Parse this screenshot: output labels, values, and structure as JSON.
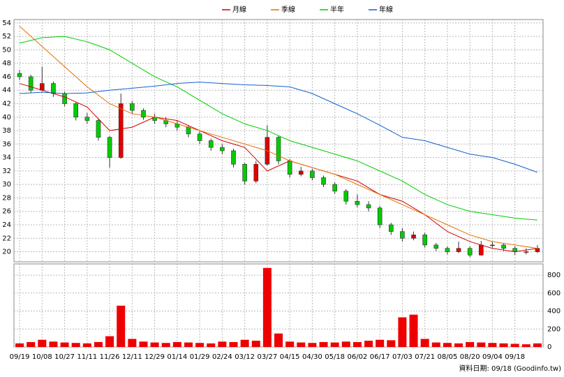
{
  "chart_data": [
    {
      "type": "candlestick",
      "x": [
        0,
        0.5,
        1,
        1.5,
        2,
        2.5,
        3,
        3.5,
        4,
        4.5,
        5,
        5.5,
        6,
        6.5,
        7,
        7.5,
        8,
        8.5,
        9,
        9.5,
        10,
        10.5,
        11,
        11.5,
        12,
        12.5,
        13,
        13.5,
        14,
        14.5,
        15,
        15.5,
        16,
        16.5,
        17,
        17.5,
        18,
        18.5,
        19,
        19.5,
        20,
        20.5,
        21,
        21.5,
        22,
        22.5,
        23
      ],
      "open": [
        46.5,
        46,
        44,
        45,
        43.5,
        42,
        40,
        39.5,
        37,
        34,
        42,
        41,
        40,
        39.5,
        39,
        38.5,
        37.5,
        36.5,
        35.5,
        35,
        33,
        30.5,
        33,
        37,
        33.5,
        31.5,
        32,
        31,
        30,
        29,
        27.5,
        27,
        26.5,
        24,
        23,
        22,
        22.5,
        21,
        20.5,
        20,
        20.5,
        19.5,
        21,
        21,
        20.5,
        20,
        20
      ],
      "high": [
        47,
        46.3,
        47.5,
        45.3,
        43.8,
        42.2,
        40.6,
        39.8,
        37.2,
        43.5,
        42.4,
        41.3,
        40.5,
        40,
        39.5,
        38.8,
        37.9,
        36.8,
        36,
        35.3,
        33.2,
        33.5,
        38.8,
        37.2,
        33.8,
        32.6,
        32.3,
        31.3,
        30.3,
        29.3,
        28.5,
        27.5,
        26.8,
        24.3,
        23.5,
        23,
        22.8,
        21.3,
        20.8,
        21.5,
        20.8,
        21.6,
        21.5,
        21.2,
        20.8,
        20.5,
        21
      ],
      "low": [
        45.5,
        43.6,
        43.8,
        43,
        41.6,
        39.5,
        39,
        36.5,
        32.5,
        33.8,
        40.5,
        39.6,
        39,
        38.5,
        38,
        37,
        36,
        35,
        34.5,
        32.5,
        30,
        30.2,
        32.8,
        33,
        31,
        31.2,
        30.6,
        29.6,
        28.6,
        27,
        26.6,
        26,
        23.5,
        22.5,
        21.5,
        21.7,
        20.6,
        20.1,
        19.6,
        19.8,
        19.2,
        19.4,
        20.6,
        20.1,
        19.5,
        19.6,
        19.8
      ],
      "close": [
        46,
        44,
        45,
        43.5,
        42,
        40,
        39.5,
        37,
        34,
        42,
        41,
        40,
        39.5,
        39,
        38.5,
        37.5,
        36.5,
        35.5,
        35,
        33,
        30.5,
        33,
        37,
        33.5,
        31.5,
        32,
        31,
        30,
        29,
        27.5,
        27,
        26.5,
        24,
        23,
        22,
        22.5,
        21,
        20.5,
        20,
        20.5,
        19.5,
        21,
        21,
        20.5,
        20,
        20,
        20.5
      ],
      "up_color": "#e00000",
      "down_color": "#00cc00",
      "series": [
        {
          "name": "月線",
          "color": "#d00000",
          "x": [
            0,
            1,
            2,
            3,
            4,
            5,
            6,
            7,
            8,
            9,
            10,
            11,
            12,
            13,
            14,
            15,
            16,
            17,
            18,
            19,
            20,
            21,
            22,
            23
          ],
          "values": [
            45,
            44,
            43,
            41.5,
            38,
            38.5,
            40,
            39.5,
            38,
            36.5,
            35.5,
            32,
            33.5,
            32.5,
            31.5,
            30.5,
            28.5,
            27.5,
            25.5,
            23,
            21.5,
            20.5,
            20,
            20.5
          ]
        },
        {
          "name": "季線",
          "color": "#e07000",
          "x": [
            0,
            1,
            2,
            3,
            4,
            5,
            6,
            7,
            8,
            9,
            10,
            11,
            12,
            13,
            14,
            15,
            16,
            17,
            18,
            19,
            20,
            21,
            22,
            23
          ],
          "values": [
            53.5,
            50.5,
            47.5,
            44.5,
            42,
            40.5,
            40,
            39,
            38,
            37,
            36,
            35,
            33.5,
            32.5,
            31.5,
            30,
            28.5,
            27,
            25.5,
            24,
            22.5,
            21.5,
            21,
            20.5
          ]
        },
        {
          "name": "半年",
          "color": "#00cc00",
          "x": [
            0,
            1,
            2,
            3,
            4,
            5,
            6,
            7,
            8,
            9,
            10,
            11,
            12,
            13,
            14,
            15,
            16,
            17,
            18,
            19,
            20,
            21,
            22,
            23
          ],
          "values": [
            51,
            51.8,
            52,
            51.2,
            50,
            48,
            46,
            44.5,
            42.5,
            40.5,
            39,
            38,
            36.5,
            35.5,
            34.5,
            33.5,
            32,
            30.5,
            28.5,
            27,
            26,
            25.5,
            25,
            24.7
          ]
        },
        {
          "name": "年線",
          "color": "#1060d0",
          "x": [
            0,
            1,
            2,
            3,
            4,
            5,
            6,
            7,
            8,
            9,
            10,
            11,
            12,
            13,
            14,
            15,
            16,
            17,
            18,
            19,
            20,
            21,
            22,
            23
          ],
          "values": [
            43.5,
            43.7,
            43.5,
            43.6,
            44,
            44.3,
            44.6,
            45,
            45.2,
            45,
            44.8,
            44.7,
            44.5,
            43.5,
            42,
            40.5,
            38.8,
            37,
            36.5,
            35.5,
            34.5,
            34,
            33,
            31.8
          ]
        }
      ],
      "xlim": [
        -0.25,
        23.25
      ],
      "ylim": [
        18.5,
        54.5
      ],
      "yticks": [
        20,
        22,
        24,
        26,
        28,
        30,
        32,
        34,
        36,
        38,
        40,
        42,
        44,
        46,
        48,
        50,
        52,
        54
      ],
      "grid": true
    },
    {
      "type": "bar",
      "x": [
        0,
        0.5,
        1,
        1.5,
        2,
        2.5,
        3,
        3.5,
        4,
        4.5,
        5,
        5.5,
        6,
        6.5,
        7,
        7.5,
        8,
        8.5,
        9,
        9.5,
        10,
        10.5,
        11,
        11.5,
        12,
        12.5,
        13,
        13.5,
        14,
        14.5,
        15,
        15.5,
        16,
        16.5,
        17,
        17.5,
        18,
        18.5,
        19,
        19.5,
        20,
        20.5,
        21,
        21.5,
        22,
        22.5,
        23
      ],
      "values": [
        40,
        55,
        80,
        60,
        50,
        45,
        40,
        55,
        120,
        460,
        90,
        60,
        50,
        45,
        55,
        50,
        45,
        40,
        60,
        55,
        80,
        70,
        880,
        150,
        60,
        50,
        45,
        55,
        50,
        60,
        55,
        70,
        80,
        75,
        330,
        360,
        90,
        50,
        45,
        40,
        55,
        50,
        45,
        40,
        35,
        30,
        40
      ],
      "color": "#ee0000",
      "xlim": [
        -0.25,
        23.25
      ],
      "xticks": [
        {
          "value": 0,
          "label": "09/19"
        },
        {
          "value": 1,
          "label": "10/08"
        },
        {
          "value": 2,
          "label": "10/27"
        },
        {
          "value": 3,
          "label": "11/11"
        },
        {
          "value": 4,
          "label": "11/26"
        },
        {
          "value": 5,
          "label": "12/11"
        },
        {
          "value": 6,
          "label": "12/29"
        },
        {
          "value": 7,
          "label": "01/14"
        },
        {
          "value": 8,
          "label": "01/29"
        },
        {
          "value": 9,
          "label": "02/24"
        },
        {
          "value": 10,
          "label": "03/12"
        },
        {
          "value": 11,
          "label": "03/27"
        },
        {
          "value": 12,
          "label": "04/15"
        },
        {
          "value": 13,
          "label": "04/30"
        },
        {
          "value": 14,
          "label": "05/18"
        },
        {
          "value": 15,
          "label": "06/02"
        },
        {
          "value": 16,
          "label": "06/17"
        },
        {
          "value": 17,
          "label": "07/03"
        },
        {
          "value": 18,
          "label": "07/21"
        },
        {
          "value": 19,
          "label": "08/05"
        },
        {
          "value": 20,
          "label": "08/20"
        },
        {
          "value": 21,
          "label": "09/04"
        },
        {
          "value": 22,
          "label": "09/18"
        }
      ],
      "ylim": [
        0,
        925
      ],
      "yticks": [
        0,
        200,
        400,
        600,
        800
      ],
      "grid": true,
      "footnote": "資料日期: 09/18 (Goodinfo.tw)"
    }
  ]
}
